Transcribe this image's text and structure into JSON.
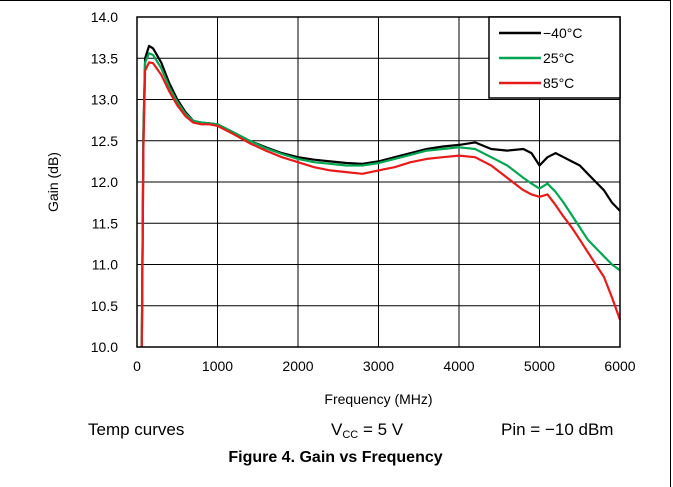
{
  "chart_data": {
    "type": "line",
    "xlabel": "Frequency (MHz)",
    "ylabel": "Gain (dB)",
    "xlim": [
      0,
      6000
    ],
    "ylim": [
      10.0,
      14.0
    ],
    "x_ticks": [
      0,
      1000,
      2000,
      3000,
      4000,
      5000,
      6000
    ],
    "y_ticks": [
      10.0,
      10.5,
      11.0,
      11.5,
      12.0,
      12.5,
      13.0,
      13.5,
      14.0
    ],
    "x_tick_labels": [
      "0",
      "1000",
      "2000",
      "3000",
      "4000",
      "5000",
      "6000"
    ],
    "y_tick_labels": [
      "10.0",
      "10.5",
      "11.0",
      "11.5",
      "12.0",
      "12.5",
      "13.0",
      "13.5",
      "14.0"
    ],
    "grid": true,
    "legend_position": "top-right",
    "series": [
      {
        "name": "−40°C",
        "color": "#000000",
        "x": [
          60,
          80,
          100,
          150,
          200,
          300,
          400,
          500,
          600,
          700,
          800,
          900,
          1000,
          1200,
          1400,
          1600,
          1800,
          2000,
          2200,
          2400,
          2600,
          2800,
          3000,
          3200,
          3400,
          3600,
          3800,
          4000,
          4200,
          4400,
          4600,
          4800,
          4900,
          5000,
          5100,
          5200,
          5300,
          5400,
          5500,
          5600,
          5700,
          5800,
          5900,
          6000
        ],
        "y": [
          10.0,
          12.6,
          13.5,
          13.65,
          13.62,
          13.45,
          13.2,
          13.0,
          12.85,
          12.74,
          12.72,
          12.71,
          12.7,
          12.6,
          12.5,
          12.42,
          12.35,
          12.3,
          12.27,
          12.25,
          12.23,
          12.22,
          12.25,
          12.3,
          12.35,
          12.4,
          12.43,
          12.45,
          12.48,
          12.4,
          12.38,
          12.4,
          12.35,
          12.2,
          12.3,
          12.35,
          12.3,
          12.25,
          12.2,
          12.1,
          12.0,
          11.9,
          11.75,
          11.65
        ]
      },
      {
        "name": "25°C",
        "color": "#00a651",
        "x": [
          60,
          80,
          100,
          150,
          200,
          300,
          400,
          500,
          600,
          700,
          800,
          900,
          1000,
          1200,
          1400,
          1600,
          1800,
          2000,
          2200,
          2400,
          2600,
          2800,
          3000,
          3200,
          3400,
          3600,
          3800,
          4000,
          4200,
          4400,
          4600,
          4800,
          4900,
          5000,
          5100,
          5200,
          5300,
          5400,
          5500,
          5600,
          5700,
          5800,
          5900,
          6000
        ],
        "y": [
          10.0,
          12.5,
          13.45,
          13.56,
          13.54,
          13.38,
          13.15,
          12.97,
          12.83,
          12.74,
          12.72,
          12.71,
          12.7,
          12.6,
          12.5,
          12.41,
          12.34,
          12.28,
          12.24,
          12.22,
          12.2,
          12.2,
          12.23,
          12.28,
          12.33,
          12.38,
          12.4,
          12.42,
          12.4,
          12.3,
          12.2,
          12.05,
          11.98,
          11.92,
          11.98,
          11.88,
          11.75,
          11.6,
          11.45,
          11.3,
          11.2,
          11.1,
          11.0,
          10.93
        ]
      },
      {
        "name": "85°C",
        "color": "#e81b1b",
        "x": [
          60,
          80,
          100,
          150,
          200,
          300,
          400,
          500,
          600,
          700,
          800,
          900,
          1000,
          1200,
          1400,
          1600,
          1800,
          2000,
          2200,
          2400,
          2600,
          2800,
          3000,
          3200,
          3400,
          3600,
          3800,
          4000,
          4200,
          4400,
          4600,
          4800,
          4900,
          5000,
          5100,
          5200,
          5300,
          5400,
          5500,
          5600,
          5700,
          5800,
          5900,
          6000
        ],
        "y": [
          10.0,
          12.4,
          13.35,
          13.45,
          13.44,
          13.3,
          13.1,
          12.93,
          12.8,
          12.72,
          12.7,
          12.7,
          12.68,
          12.58,
          12.47,
          12.38,
          12.3,
          12.24,
          12.18,
          12.14,
          12.12,
          12.1,
          12.14,
          12.18,
          12.24,
          12.28,
          12.3,
          12.32,
          12.3,
          12.2,
          12.05,
          11.9,
          11.85,
          11.82,
          11.85,
          11.72,
          11.58,
          11.45,
          11.3,
          11.15,
          11.0,
          10.85,
          10.6,
          10.33
        ]
      }
    ]
  },
  "conditions": {
    "temp": "Temp curves",
    "vcc_prefix": "V",
    "vcc_sub": "CC",
    "vcc_suffix": " = 5 V",
    "pin": "Pin = −10 dBm"
  },
  "caption": "Figure 4.  Gain vs Frequency"
}
